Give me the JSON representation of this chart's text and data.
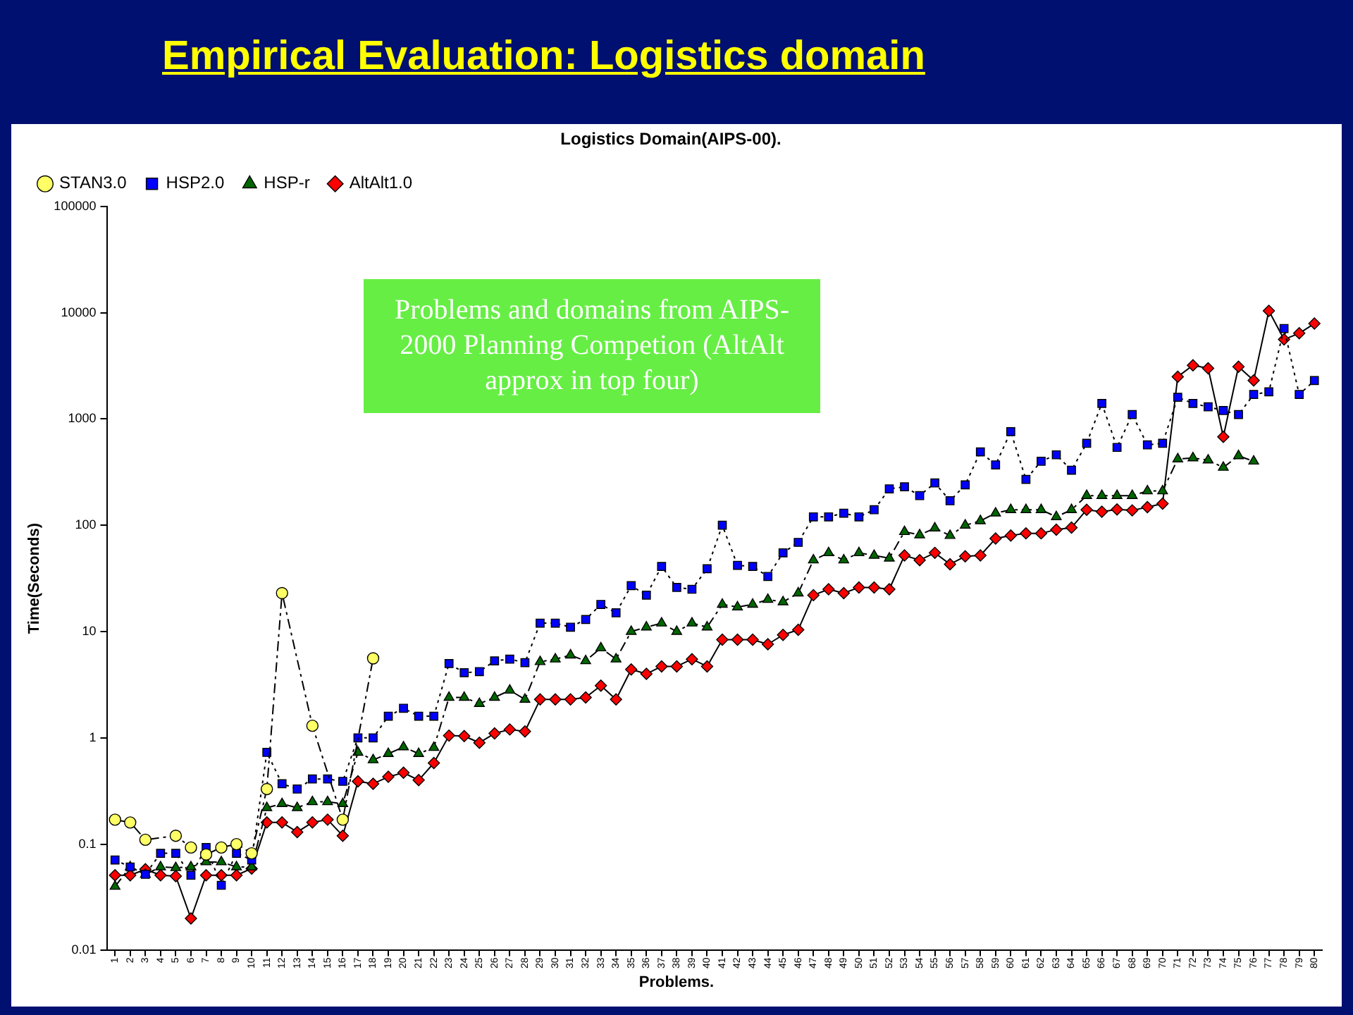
{
  "chart_data": {
    "type": "line",
    "title": "Empirical Evaluation: Logistics domain",
    "subtitle": "Logistics Domain(AIPS-00).",
    "xlabel": "Problems.",
    "ylabel": "Time(Seconds)",
    "annotations": [
      "Problems and domains from AIPS-2000 Planning Competion (AltAlt approx in top four)"
    ],
    "categories": [
      "1",
      "2",
      "3",
      "4",
      "5",
      "6",
      "7",
      "8",
      "9",
      "10",
      "11",
      "12",
      "13",
      "14",
      "15",
      "16",
      "17",
      "18",
      "19",
      "20",
      "21",
      "22",
      "23",
      "24",
      "25",
      "26",
      "27",
      "28",
      "29",
      "30",
      "31",
      "32",
      "33",
      "34",
      "35",
      "36",
      "37",
      "38",
      "39",
      "40",
      "41",
      "42",
      "43",
      "44",
      "45",
      "46",
      "47",
      "48",
      "49",
      "50",
      "51",
      "52",
      "53",
      "54",
      "55",
      "56",
      "57",
      "58",
      "59",
      "60",
      "61",
      "62",
      "63",
      "64",
      "65",
      "66",
      "67",
      "68",
      "69",
      "70",
      "71",
      "72",
      "73",
      "74",
      "75",
      "76",
      "77",
      "78",
      "79",
      "80"
    ],
    "series": [
      {
        "name": "STAN3.0",
        "color": "#ffff66",
        "marker": "circle",
        "line_style": "dashed",
        "values": [
          0.17,
          0.16,
          0.11,
          null,
          0.12,
          0.093,
          0.08,
          0.093,
          0.1,
          0.082,
          0.33,
          23,
          null,
          1.3,
          null,
          0.17,
          null,
          5.6,
          null,
          null,
          null,
          null,
          null,
          null,
          null,
          null,
          null,
          null,
          null,
          null,
          null,
          null,
          null,
          null,
          null,
          null,
          null,
          null,
          null,
          null,
          null,
          null,
          null,
          null,
          null,
          null,
          null,
          null,
          null,
          null,
          null,
          null,
          null,
          null,
          null,
          null,
          null,
          null,
          null,
          null,
          null,
          null,
          null,
          null,
          null,
          null,
          null,
          null,
          null,
          null,
          null,
          null,
          null,
          null,
          null,
          null,
          null,
          null,
          null,
          null
        ]
      },
      {
        "name": "HSP2.0",
        "color": "#0000ff",
        "marker": "square",
        "line_style": "dotted",
        "values": [
          0.071,
          0.061,
          0.052,
          0.082,
          0.082,
          0.051,
          0.093,
          0.041,
          0.082,
          0.071,
          0.73,
          0.37,
          0.33,
          0.41,
          0.41,
          0.39,
          1.0,
          1.0,
          1.6,
          1.9,
          1.6,
          1.6,
          5.0,
          4.1,
          4.2,
          5.3,
          5.5,
          5.1,
          12,
          12,
          11,
          13,
          18,
          15,
          27,
          22,
          41,
          26,
          25,
          39,
          100,
          42,
          41,
          33,
          55,
          69,
          120,
          120,
          130,
          120,
          140,
          220,
          230,
          190,
          250,
          170,
          240,
          490,
          370,
          760,
          270,
          400,
          460,
          330,
          590,
          1400,
          540,
          1100,
          570,
          590,
          1600,
          1400,
          1300,
          1200,
          1100,
          1700,
          1800,
          7100,
          1700,
          2300
        ]
      },
      {
        "name": "HSP-r",
        "color": "#006600",
        "marker": "triangle",
        "line_style": "dashed",
        "values": [
          0.04,
          0.061,
          0.052,
          0.061,
          0.06,
          0.061,
          0.068,
          0.068,
          0.061,
          0.061,
          0.22,
          0.24,
          0.22,
          0.25,
          0.25,
          0.24,
          0.73,
          0.62,
          0.71,
          0.82,
          0.71,
          0.81,
          2.4,
          2.4,
          2.1,
          2.4,
          2.8,
          2.3,
          5.2,
          5.5,
          6.0,
          5.3,
          7.0,
          5.5,
          10,
          11,
          12,
          10,
          12,
          11,
          18,
          17,
          18,
          20,
          19,
          23,
          47,
          55,
          47,
          55,
          52,
          49,
          87,
          81,
          94,
          80,
          100,
          110,
          130,
          140,
          140,
          140,
          120,
          140,
          190,
          190,
          190,
          190,
          210,
          210,
          420,
          430,
          410,
          350,
          450,
          400,
          null,
          null,
          null,
          null
        ]
      },
      {
        "name": "AltAlt1.0",
        "color": "#ff0000",
        "marker": "diamond",
        "line_style": "solid",
        "values": [
          0.051,
          0.051,
          0.058,
          0.051,
          0.05,
          0.02,
          0.051,
          0.051,
          0.051,
          0.059,
          0.16,
          0.16,
          0.13,
          0.16,
          0.17,
          0.12,
          0.39,
          0.37,
          0.43,
          0.47,
          0.4,
          0.58,
          1.05,
          1.04,
          0.9,
          1.1,
          1.2,
          1.15,
          2.3,
          2.3,
          2.3,
          2.4,
          3.1,
          2.3,
          4.4,
          4.0,
          4.7,
          4.7,
          5.5,
          4.7,
          8.4,
          8.4,
          8.4,
          7.6,
          9.3,
          10.4,
          22,
          25,
          23,
          26,
          26,
          25,
          52,
          47,
          55,
          43,
          51,
          52,
          75,
          80,
          84,
          84,
          91,
          95,
          140,
          134,
          141,
          138,
          148,
          160,
          2500,
          3200,
          3000,
          680,
          3100,
          2300,
          10400,
          5600,
          6400,
          7900
        ]
      }
    ],
    "log": "y",
    "ylim": [
      0.01,
      100000
    ],
    "yticks": [
      0.01,
      0.1,
      1,
      10,
      100,
      1000,
      10000,
      100000
    ],
    "grid": false,
    "legend": "top left"
  }
}
